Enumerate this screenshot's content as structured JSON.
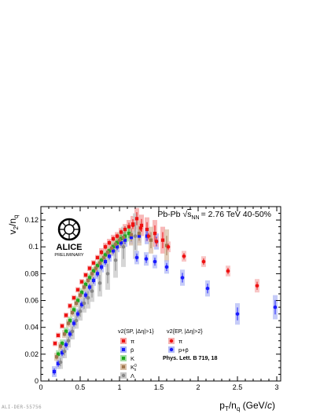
{
  "footer_id": "ALI-DER-55756",
  "logo": {
    "name": "ALICE",
    "subtitle": "PRELIMINARY"
  },
  "chart_data": {
    "type": "scatter",
    "title": "Pb-Pb √sNN = 2.76 TeV 40-50%",
    "title_parts": {
      "system": "Pb-Pb",
      "sqrt_s": "s",
      "sub": "NN",
      "energy": "= 2.76 TeV 40-50%"
    },
    "xlabel": "pT/nq (GeV/c)",
    "xlabel_parts": {
      "p": "p",
      "T": "T",
      "slash": "/n",
      "q": "q",
      "unit": " (GeV/",
      "c": "c",
      "close": ")"
    },
    "ylabel": "v2/nq",
    "ylabel_parts": {
      "v": "v",
      "two": "2",
      "slash": "/n",
      "q": "q"
    },
    "xlim": [
      0,
      3.05
    ],
    "ylim": [
      0,
      0.13
    ],
    "x_ticks": [
      0,
      0.5,
      1,
      1.5,
      2,
      2.5,
      3
    ],
    "x_tick_labels": [
      "0",
      "0.5",
      "1",
      "1.5",
      "2",
      "2.5",
      "3"
    ],
    "y_ticks": [
      0,
      0.02,
      0.04,
      0.06,
      0.08,
      0.1,
      0.12
    ],
    "y_tick_labels": [
      "0",
      "0.02",
      "0.04",
      "0.06",
      "0.08",
      "0.1",
      "0.12"
    ],
    "legend": {
      "header_sp": "v2{SP, |Δη|>1}",
      "header_ep": "v2{EP, |Δη|>2}",
      "labels_sp": [
        "π",
        "p̄",
        "K",
        "K0s",
        "Λ"
      ],
      "labels_ep": [
        "π",
        "p+p̄"
      ],
      "reference": "Phys. Lett. B 719, 18"
    },
    "series": [
      {
        "name": "π",
        "method": "SP",
        "color": "#ee1111",
        "box_color": "#f5a0a0",
        "marker": "square",
        "points": [
          [
            0.18,
            0.028,
            0.002
          ],
          [
            0.22,
            0.034,
            0.002
          ],
          [
            0.27,
            0.041,
            0.002
          ],
          [
            0.32,
            0.049,
            0.002
          ],
          [
            0.37,
            0.056,
            0.002
          ],
          [
            0.42,
            0.062,
            0.002
          ],
          [
            0.47,
            0.068,
            0.002
          ],
          [
            0.52,
            0.074,
            0.002
          ],
          [
            0.57,
            0.079,
            0.002
          ],
          [
            0.62,
            0.084,
            0.002
          ],
          [
            0.67,
            0.088,
            0.002
          ],
          [
            0.72,
            0.092,
            0.002
          ],
          [
            0.77,
            0.096,
            0.003
          ],
          [
            0.82,
            0.1,
            0.003
          ],
          [
            0.87,
            0.103,
            0.003
          ],
          [
            0.92,
            0.106,
            0.003
          ],
          [
            0.97,
            0.108,
            0.003
          ],
          [
            1.02,
            0.111,
            0.003
          ],
          [
            1.07,
            0.113,
            0.004
          ],
          [
            1.12,
            0.115,
            0.005
          ],
          [
            1.17,
            0.117,
            0.006
          ],
          [
            1.22,
            0.121,
            0.008
          ],
          [
            1.28,
            0.116,
            0.008
          ],
          [
            1.35,
            0.113,
            0.009
          ],
          [
            1.45,
            0.11,
            0.01
          ],
          [
            1.55,
            0.105,
            0.01
          ]
        ]
      },
      {
        "name": "p̄",
        "method": "SP",
        "color": "#1a1aff",
        "box_color": "#a8b0f5",
        "marker": "square",
        "points": [
          [
            0.17,
            0.007,
            0.004
          ],
          [
            0.22,
            0.013,
            0.004
          ],
          [
            0.27,
            0.021,
            0.004
          ],
          [
            0.32,
            0.027,
            0.004
          ],
          [
            0.37,
            0.035,
            0.004
          ],
          [
            0.42,
            0.043,
            0.004
          ],
          [
            0.47,
            0.05,
            0.004
          ],
          [
            0.52,
            0.057,
            0.004
          ],
          [
            0.57,
            0.064,
            0.004
          ],
          [
            0.62,
            0.07,
            0.004
          ],
          [
            0.67,
            0.075,
            0.004
          ],
          [
            0.72,
            0.08,
            0.004
          ],
          [
            0.77,
            0.085,
            0.004
          ],
          [
            0.82,
            0.089,
            0.004
          ],
          [
            0.87,
            0.093,
            0.004
          ],
          [
            0.92,
            0.097,
            0.004
          ],
          [
            0.97,
            0.1,
            0.004
          ],
          [
            1.02,
            0.103,
            0.004
          ],
          [
            1.07,
            0.105,
            0.005
          ],
          [
            1.15,
            0.107,
            0.005
          ],
          [
            1.25,
            0.108,
            0.005
          ],
          [
            1.35,
            0.108,
            0.006
          ],
          [
            1.47,
            0.104,
            0.006
          ]
        ]
      },
      {
        "name": "K",
        "method": "SP",
        "color": "#1ea81e",
        "box_color": "#a3dca3",
        "marker": "square",
        "points": [
          [
            0.22,
            0.02,
            0.003
          ],
          [
            0.27,
            0.028,
            0.003
          ],
          [
            0.32,
            0.037,
            0.003
          ],
          [
            0.37,
            0.045,
            0.003
          ],
          [
            0.42,
            0.053,
            0.003
          ],
          [
            0.47,
            0.06,
            0.003
          ],
          [
            0.52,
            0.066,
            0.003
          ],
          [
            0.57,
            0.072,
            0.003
          ],
          [
            0.62,
            0.077,
            0.003
          ],
          [
            0.67,
            0.082,
            0.003
          ],
          [
            0.72,
            0.086,
            0.003
          ],
          [
            0.77,
            0.09,
            0.003
          ],
          [
            0.82,
            0.094,
            0.003
          ],
          [
            0.87,
            0.097,
            0.003
          ],
          [
            0.92,
            0.1,
            0.004
          ],
          [
            0.97,
            0.103,
            0.004
          ],
          [
            1.02,
            0.106,
            0.005
          ],
          [
            1.07,
            0.108,
            0.005
          ],
          [
            1.12,
            0.11,
            0.006
          ]
        ]
      },
      {
        "name": "K0s",
        "method": "SP",
        "color": "#a0774f",
        "box_color": "#d8bfa6",
        "marker": "square",
        "points": [
          [
            0.2,
            0.018,
            0.003
          ],
          [
            0.25,
            0.026,
            0.003
          ],
          [
            0.3,
            0.035,
            0.003
          ],
          [
            0.35,
            0.043,
            0.003
          ],
          [
            0.4,
            0.051,
            0.003
          ],
          [
            0.45,
            0.058,
            0.003
          ],
          [
            0.5,
            0.064,
            0.003
          ],
          [
            0.55,
            0.07,
            0.003
          ],
          [
            0.6,
            0.075,
            0.003
          ],
          [
            0.65,
            0.08,
            0.004
          ],
          [
            0.7,
            0.084,
            0.004
          ],
          [
            0.75,
            0.088,
            0.004
          ],
          [
            0.8,
            0.092,
            0.004
          ],
          [
            0.85,
            0.096,
            0.004
          ],
          [
            0.9,
            0.099,
            0.005
          ],
          [
            0.95,
            0.102,
            0.005
          ],
          [
            1.0,
            0.105,
            0.006
          ],
          [
            1.05,
            0.107,
            0.007
          ],
          [
            1.15,
            0.109,
            0.008
          ],
          [
            1.25,
            0.11,
            0.009
          ],
          [
            1.4,
            0.105,
            0.01
          ],
          [
            1.6,
            0.101,
            0.012
          ]
        ]
      },
      {
        "name": "Λ",
        "method": "SP",
        "color": "#888888",
        "box_color": "#c8c8c8",
        "marker": "circle",
        "points": [
          [
            0.25,
            0.014,
            0.005
          ],
          [
            0.3,
            0.022,
            0.005
          ],
          [
            0.35,
            0.03,
            0.005
          ],
          [
            0.4,
            0.037,
            0.006
          ],
          [
            0.45,
            0.045,
            0.006
          ],
          [
            0.5,
            0.052,
            0.007
          ],
          [
            0.55,
            0.058,
            0.007
          ],
          [
            0.6,
            0.062,
            0.008
          ],
          [
            0.65,
            0.067,
            0.008
          ],
          [
            0.75,
            0.073,
            0.01
          ],
          [
            0.85,
            0.08,
            0.012
          ],
          [
            0.95,
            0.09,
            0.013
          ],
          [
            1.05,
            0.1,
            0.015
          ],
          [
            1.2,
            0.108,
            0.017
          ]
        ]
      },
      {
        "name": "π",
        "method": "EP",
        "color": "#ee1111",
        "box_color": "#f5b3b3",
        "marker": "circle",
        "points": [
          [
            1.17,
            0.116,
            0.004
          ],
          [
            1.27,
            0.114,
            0.004
          ],
          [
            1.37,
            0.108,
            0.004
          ],
          [
            1.47,
            0.104,
            0.004
          ],
          [
            1.62,
            0.1,
            0.004
          ],
          [
            1.82,
            0.093,
            0.004
          ],
          [
            2.07,
            0.089,
            0.004
          ],
          [
            2.38,
            0.082,
            0.004
          ],
          [
            2.75,
            0.071,
            0.005
          ]
        ]
      },
      {
        "name": "p+p̄",
        "method": "EP",
        "color": "#1a1aff",
        "box_color": "#b3bbf5",
        "marker": "circle",
        "points": [
          [
            1.22,
            0.092,
            0.005
          ],
          [
            1.34,
            0.091,
            0.005
          ],
          [
            1.45,
            0.089,
            0.005
          ],
          [
            1.6,
            0.085,
            0.005
          ],
          [
            1.8,
            0.077,
            0.006
          ],
          [
            2.12,
            0.069,
            0.006
          ],
          [
            2.5,
            0.05,
            0.008
          ],
          [
            2.98,
            0.055,
            0.009
          ]
        ]
      }
    ]
  }
}
